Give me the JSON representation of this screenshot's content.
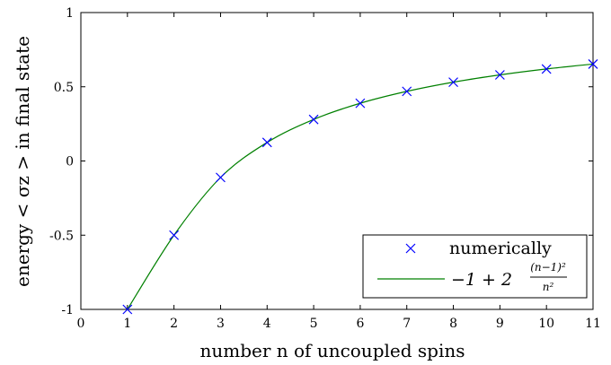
{
  "chart_data": {
    "type": "line",
    "title": "",
    "xlabel": "number n of uncoupled spins",
    "ylabel": "energy < σz > in final state",
    "xlim": [
      0,
      11
    ],
    "ylim": [
      -1,
      1
    ],
    "xticks": [
      "0",
      "1",
      "2",
      "3",
      "4",
      "5",
      "6",
      "7",
      "8",
      "9",
      "10",
      "11"
    ],
    "yticks": [
      "-1",
      "-0.5",
      "0",
      "0.5",
      "1"
    ],
    "grid": false,
    "legend_position": "bottom-right",
    "series": [
      {
        "name": "numerically",
        "style": "markers-x",
        "color": "#0000ff",
        "x": [
          1,
          2,
          3,
          4,
          5,
          6,
          7,
          8,
          9,
          10,
          11
        ],
        "y": [
          -1.0,
          -0.5,
          -0.111,
          0.125,
          0.28,
          0.389,
          0.469,
          0.531,
          0.58,
          0.62,
          0.653
        ]
      },
      {
        "name": "−1 + 2 (n−1)² / n²",
        "style": "line",
        "color": "#008000",
        "x": [
          1,
          2,
          3,
          4,
          5,
          6,
          7,
          8,
          9,
          10,
          11
        ],
        "y": [
          -1.0,
          -0.5,
          -0.111,
          0.125,
          0.28,
          0.389,
          0.469,
          0.531,
          0.58,
          0.62,
          0.653
        ]
      }
    ],
    "legend": {
      "marker_label": "numerically",
      "formula_main": "−1 + 2",
      "formula_num": "(n−1)²",
      "formula_den": "n²"
    }
  }
}
